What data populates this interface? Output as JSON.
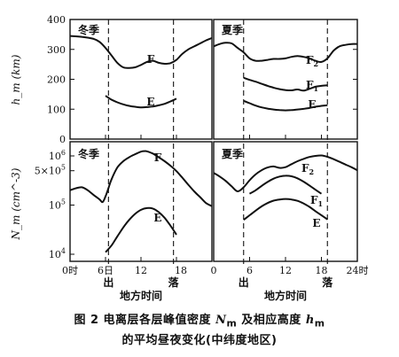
{
  "chart_data": {
    "type": "line",
    "panels": {
      "height_winter": {
        "label": "冬季",
        "ylabel": "h_m (km)",
        "yticks": [
          0,
          100,
          200,
          300,
          400
        ],
        "ylim": [
          0,
          400
        ],
        "xlim": [
          0,
          24
        ],
        "series": [
          {
            "name": "F",
            "x": [
              0,
              2,
              4,
              5,
              6,
              7,
              8,
              9,
              10,
              11,
              12,
              13,
              14,
              15,
              16,
              17,
              18,
              19,
              20,
              21,
              22,
              23,
              24
            ],
            "y": [
              345,
              342,
              335,
              325,
              305,
              280,
              255,
              240,
              238,
              240,
              248,
              258,
              262,
              255,
              252,
              254,
              265,
              285,
              300,
              310,
              320,
              330,
              338
            ]
          },
          {
            "name": "E",
            "x": [
              6,
              7,
              8,
              9,
              10,
              11,
              12,
              13,
              14,
              15,
              16,
              17,
              18
            ],
            "y": [
              145,
              132,
              123,
              116,
              111,
              108,
              106,
              107,
              109,
              113,
              118,
              126,
              135
            ]
          }
        ]
      },
      "height_summer": {
        "label": "夏季",
        "xlim": [
          0,
          24
        ],
        "ylim": [
          0,
          400
        ],
        "series": [
          {
            "name": "F2",
            "x": [
              0,
              1,
              2,
              3,
              4,
              5,
              6,
              7,
              8,
              9,
              10,
              11,
              12,
              13,
              14,
              15,
              16,
              17,
              18,
              19,
              20,
              21,
              22,
              23,
              24
            ],
            "y": [
              310,
              318,
              322,
              320,
              305,
              290,
              270,
              262,
              262,
              265,
              268,
              268,
              270,
              275,
              278,
              275,
              270,
              262,
              258,
              270,
              295,
              310,
              315,
              318,
              318
            ]
          },
          {
            "name": "F1",
            "x": [
              5,
              6,
              7,
              8,
              9,
              10,
              11,
              12,
              13,
              14,
              15,
              16,
              17,
              18,
              19
            ],
            "y": [
              205,
              198,
              192,
              185,
              178,
              172,
              167,
              164,
              163,
              166,
              162,
              168,
              175,
              178,
              180
            ]
          },
          {
            "name": "E",
            "x": [
              5,
              6,
              7,
              8,
              9,
              10,
              11,
              12,
              13,
              14,
              15,
              16,
              17,
              18,
              19
            ],
            "y": [
              128,
              120,
              112,
              106,
              102,
              99,
              97,
              96,
              97,
              99,
              101,
              104,
              108,
              111,
              113
            ]
          }
        ]
      },
      "density_winter": {
        "label": "冬季",
        "ylabel": "N_m (cm^-3)",
        "yticks": [
          "10^4",
          "10^5",
          "5×10^5",
          "10^6"
        ],
        "xlim": [
          0,
          24
        ],
        "series": [
          {
            "name": "F",
            "x": [
              0,
              1,
              2,
              3,
              4,
              5,
              5.5,
              6,
              6.5,
              7,
              8,
              9,
              10,
              11,
              12,
              12.5,
              13,
              14,
              15,
              16,
              17,
              18,
              19,
              20,
              21,
              22,
              23,
              24
            ],
            "y": [
              200000.0,
              220000.0,
              230000.0,
              200000.0,
              160000.0,
              130000.0,
              115000.0,
              150000.0,
              220000.0,
              330000.0,
              580000.0,
              780000.0,
              940000.0,
              1080000.0,
              1220000.0,
              1250000.0,
              1240000.0,
              1120000.0,
              940000.0,
              780000.0,
              630000.0,
              490000.0,
              360000.0,
              260000.0,
              190000.0,
              145000.0,
              110000.0,
              95000.0
            ]
          },
          {
            "name": "E",
            "x": [
              6,
              7,
              8,
              9,
              10,
              11,
              12,
              13,
              14,
              15,
              16,
              17,
              18
            ],
            "y": [
              11000.0,
              15000.0,
              23000.0,
              35000.0,
              50000.0,
              66000.0,
              80000.0,
              87000.0,
              85000.0,
              72000.0,
              55000.0,
              38000.0,
              25000.0
            ]
          }
        ]
      },
      "density_summer": {
        "label": "夏季",
        "xlim": [
          0,
          24
        ],
        "series": [
          {
            "name": "F2",
            "x": [
              0,
              1,
              2,
              3,
              4,
              5,
              6,
              7,
              8,
              9,
              10,
              11,
              12,
              13,
              14,
              15,
              16,
              17,
              18,
              19,
              20,
              21,
              22,
              23,
              24
            ],
            "y": [
              450000.0,
              380000.0,
              310000.0,
              240000.0,
              190000.0,
              230000.0,
              320000.0,
              420000.0,
              510000.0,
              580000.0,
              610000.0,
              570000.0,
              590000.0,
              680000.0,
              780000.0,
              870000.0,
              950000.0,
              1000000.0,
              1020000.0,
              960000.0,
              860000.0,
              760000.0,
              670000.0,
              590000.0,
              510000.0
            ]
          },
          {
            "name": "F1",
            "x": [
              6,
              7,
              8,
              9,
              10,
              11,
              12,
              13,
              14,
              15,
              16,
              17,
              18
            ],
            "y": [
              170000.0,
              200000.0,
              245000.0,
              295000.0,
              345000.0,
              380000.0,
              395000.0,
              385000.0,
              350000.0,
              300000.0,
              250000.0,
              205000.0,
              170000.0
            ]
          },
          {
            "name": "E",
            "x": [
              5,
              6,
              7,
              8,
              9,
              10,
              11,
              12,
              13,
              14,
              15,
              16,
              17,
              18,
              19
            ],
            "y": [
              50000.0,
              62000.0,
              77000.0,
              94000.0,
              110000.0,
              123000.0,
              130000.0,
              133000.0,
              130000.0,
              122000.0,
              108000.0,
              92000.0,
              75000.0,
              62000.0,
              51000.0
            ]
          }
        ]
      }
    },
    "x_ticks": {
      "winter": [
        "0时",
        "6日",
        "12",
        "18"
      ],
      "summer": [
        "0",
        "6",
        "12",
        "18",
        "24时"
      ]
    },
    "sunrise_sunset": {
      "winter": {
        "sunrise_hour": 6.5,
        "sunset_hour": 17.5,
        "sunrise_label": "出",
        "sunset_label": "落"
      },
      "summer": {
        "sunrise_hour": 5,
        "sunset_hour": 19,
        "sunrise_label": "出",
        "sunset_label": "落"
      }
    },
    "xlabel": "地方时间"
  },
  "caption": {
    "line1_prefix": "图 2   电离层各层峰值密度 ",
    "nm": "N",
    "nm_sub": "m",
    "line1_mid": " 及相应高度 ",
    "hm": "h",
    "hm_sub": "m",
    "line2": "的平均昼夜变化(中纬度地区)"
  }
}
